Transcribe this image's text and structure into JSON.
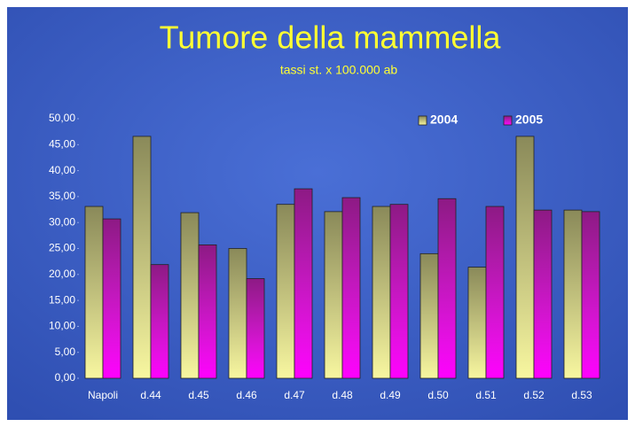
{
  "chart_data": {
    "type": "bar",
    "title": "Tumore della mammella",
    "subtitle": "tassi st. x 100.000 ab",
    "categories": [
      "Napoli",
      "d.44",
      "d.45",
      "d.46",
      "d.47",
      "d.48",
      "d.49",
      "d.50",
      "d.51",
      "d.52",
      "d.53"
    ],
    "series": [
      {
        "name": "2004",
        "color": "#f8f7a0",
        "values": [
          33.1,
          46.6,
          31.9,
          25.0,
          33.5,
          32.1,
          33.1,
          24.0,
          21.4,
          46.6,
          32.4
        ]
      },
      {
        "name": "2005",
        "color": "#ff00ff",
        "values": [
          30.7,
          21.9,
          25.7,
          19.2,
          36.5,
          34.8,
          33.5,
          34.6,
          33.1,
          32.4,
          32.1
        ]
      }
    ],
    "ylim": [
      0,
      50
    ],
    "yticks": [
      {
        "value": 0,
        "label": "0,00"
      },
      {
        "value": 5,
        "label": "5,00"
      },
      {
        "value": 10,
        "label": "10,00"
      },
      {
        "value": 15,
        "label": "15,00"
      },
      {
        "value": 20,
        "label": "20,00"
      },
      {
        "value": 25,
        "label": "25,00"
      },
      {
        "value": 30,
        "label": "30,00"
      },
      {
        "value": 35,
        "label": "35,00"
      },
      {
        "value": 40,
        "label": "40,00"
      },
      {
        "value": 45,
        "label": "45,00"
      },
      {
        "value": 50,
        "label": "50,00"
      }
    ],
    "grid": false,
    "legend": "top-right"
  }
}
